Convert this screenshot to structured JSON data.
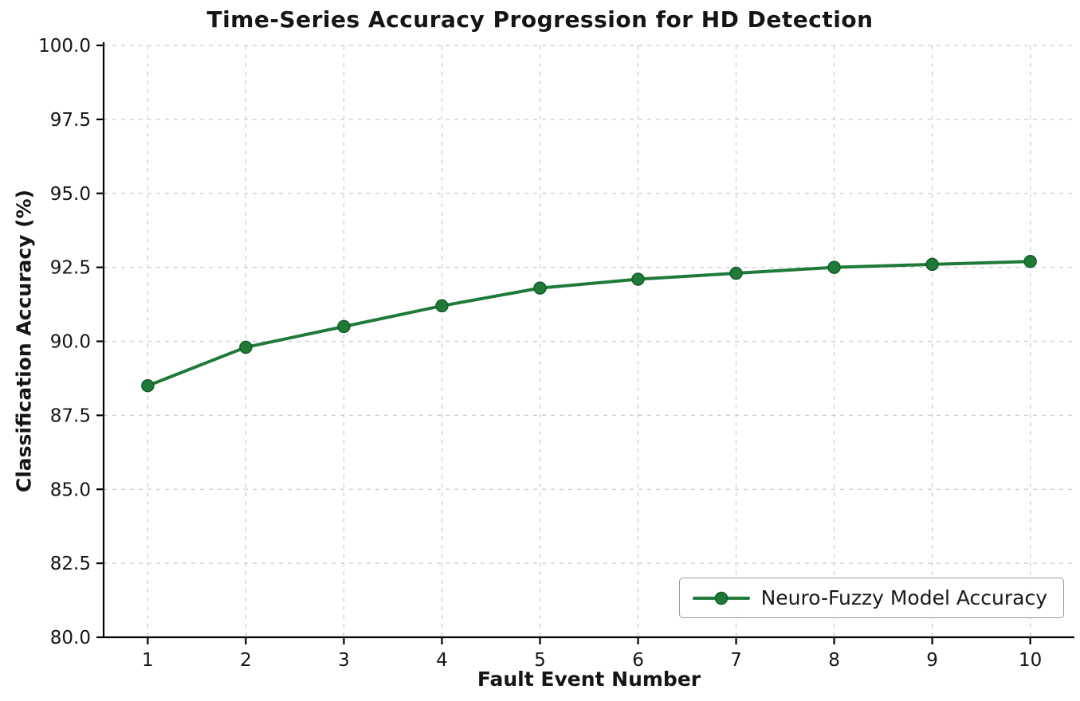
{
  "chart_data": {
    "type": "line",
    "title": "Time-Series Accuracy Progression for HD Detection",
    "xlabel": "Fault Event Number",
    "ylabel": "Classification Accuracy (%)",
    "x": [
      1,
      2,
      3,
      4,
      5,
      6,
      7,
      8,
      9,
      10
    ],
    "series": [
      {
        "name": "Neuro-Fuzzy Model Accuracy",
        "values": [
          88.5,
          89.8,
          90.5,
          91.2,
          91.8,
          92.1,
          92.3,
          92.5,
          92.6,
          92.7
        ],
        "color": "#1f7a38",
        "marker": "circle",
        "marker_edge_color": "#145c2b"
      }
    ],
    "xlim": [
      0.55,
      10.45
    ],
    "ylim": [
      80.0,
      100.0
    ],
    "xticks": [
      1,
      2,
      3,
      4,
      5,
      6,
      7,
      8,
      9,
      10
    ],
    "xtick_labels": [
      "1",
      "2",
      "3",
      "4",
      "5",
      "6",
      "7",
      "8",
      "9",
      "10"
    ],
    "yticks": [
      80.0,
      82.5,
      85.0,
      87.5,
      90.0,
      92.5,
      95.0,
      97.5,
      100.0
    ],
    "ytick_labels": [
      "80.0",
      "82.5",
      "85.0",
      "87.5",
      "90.0",
      "92.5",
      "95.0",
      "97.5",
      "100.0"
    ],
    "grid": true,
    "grid_style": "dashed",
    "grid_color": "#cccccc",
    "axis_color": "#000000",
    "text_color": "#151515",
    "legend_position": "lower right"
  }
}
